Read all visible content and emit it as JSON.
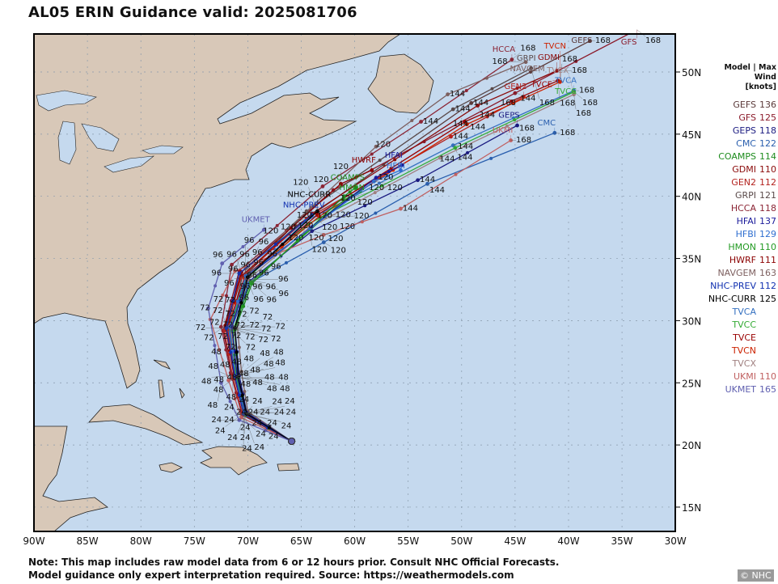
{
  "title": "AL05 ERIN Guidance valid: 2025081706",
  "legend": {
    "header_line1": "Model | Max Wind",
    "header_line2": "[knots]",
    "items": [
      {
        "name": "GEFS",
        "wind": "136",
        "color": "#5b3a3a"
      },
      {
        "name": "GFS",
        "wind": "125",
        "color": "#8b1a2a"
      },
      {
        "name": "GEPS",
        "wind": "118",
        "color": "#1a1a80"
      },
      {
        "name": "CMC",
        "wind": "122",
        "color": "#2a5fae"
      },
      {
        "name": "COAMPS",
        "wind": "114",
        "color": "#1e8c1e"
      },
      {
        "name": "GDMI",
        "wind": "110",
        "color": "#8b0a0a"
      },
      {
        "name": "GEN2",
        "wind": "112",
        "color": "#b3221e"
      },
      {
        "name": "GRPI",
        "wind": "121",
        "color": "#5a4a4a"
      },
      {
        "name": "HCCA",
        "wind": "118",
        "color": "#8b2535"
      },
      {
        "name": "HFAI",
        "wind": "137",
        "color": "#1a1a9a"
      },
      {
        "name": "HFBI",
        "wind": "129",
        "color": "#2f6fd0"
      },
      {
        "name": "HMON",
        "wind": "110",
        "color": "#239a23"
      },
      {
        "name": "HWRF",
        "wind": "111",
        "color": "#8b0000"
      },
      {
        "name": "NAVGEM",
        "wind": "163",
        "color": "#7d5f5f"
      },
      {
        "name": "NHC-PREV",
        "wind": "112",
        "color": "#1030b0"
      },
      {
        "name": "NHC-CURR",
        "wind": "125",
        "color": "#000000"
      },
      {
        "name": "TVCA",
        "wind": "",
        "color": "#3470c0"
      },
      {
        "name": "TVCC",
        "wind": "",
        "color": "#33aa33"
      },
      {
        "name": "TVCE",
        "wind": "",
        "color": "#990000"
      },
      {
        "name": "TVCN",
        "wind": "",
        "color": "#cc2200"
      },
      {
        "name": "TVCX",
        "wind": "",
        "color": "#a08080"
      },
      {
        "name": "UKMI",
        "wind": "110",
        "color": "#c06060"
      },
      {
        "name": "UKMET",
        "wind": "165",
        "color": "#6060b0"
      }
    ]
  },
  "axes": {
    "lon_ticks": [
      "90W",
      "85W",
      "80W",
      "75W",
      "70W",
      "65W",
      "60W",
      "55W",
      "50W",
      "45W",
      "40W",
      "35W",
      "30W"
    ],
    "lat_ticks": [
      "50N",
      "45N",
      "40N",
      "35N",
      "30N",
      "25N",
      "20N",
      "15N"
    ],
    "lon_range": [
      -90,
      -30
    ],
    "lat_range": [
      13.1,
      53.1
    ]
  },
  "colors": {
    "ocean": "#c5d9ee",
    "land": "#d8c8b8",
    "lakes": "#c5d9ee"
  },
  "tracks": [
    {
      "model": "GEFS",
      "color": "#5b3a3a",
      "points": [
        [
          0,
          -65.9,
          20.3
        ],
        [
          24,
          -70.4,
          22.6
        ],
        [
          48,
          -71.3,
          25.7
        ],
        [
          72,
          -71.6,
          29.6
        ],
        [
          96,
          -70.5,
          33.6
        ],
        [
          120,
          -65.5,
          37.6
        ],
        [
          144,
          -49.1,
          47.5
        ],
        [
          168,
          -38.0,
          52.5
        ]
      ]
    },
    {
      "model": "GFS",
      "color": "#8b1a2a",
      "points": [
        [
          0,
          -65.9,
          20.3
        ],
        [
          24,
          -70.5,
          22.4
        ],
        [
          48,
          -71.4,
          25.3
        ],
        [
          72,
          -72.3,
          29.2
        ],
        [
          96,
          -70.8,
          34.0
        ],
        [
          120,
          -62.0,
          40.5
        ],
        [
          144,
          -45.0,
          48.3
        ],
        [
          168,
          -33.6,
          53.4
        ]
      ]
    },
    {
      "model": "HCCA",
      "color": "#8b2535",
      "points": [
        [
          0,
          -65.9,
          20.3
        ],
        [
          24,
          -70.6,
          22.6
        ],
        [
          48,
          -71.6,
          25.8
        ],
        [
          72,
          -72.5,
          29.5
        ],
        [
          96,
          -71.5,
          34.5
        ],
        [
          120,
          -63.0,
          40.8
        ],
        [
          144,
          -53.8,
          46.0
        ],
        [
          168,
          -45.3,
          51.0
        ]
      ]
    },
    {
      "model": "GRPI",
      "color": "#5a4a4a",
      "points": [
        [
          0,
          -65.9,
          20.3
        ],
        [
          24,
          -70.2,
          22.6
        ],
        [
          48,
          -71.0,
          25.6
        ],
        [
          72,
          -71.5,
          29.6
        ],
        [
          96,
          -70.0,
          33.8
        ],
        [
          120,
          -64.5,
          38.8
        ],
        [
          144,
          -50.8,
          47.0
        ],
        [
          168,
          -43.5,
          50.3
        ]
      ]
    },
    {
      "model": "NAVGEM",
      "color": "#7d5f5f",
      "points": [
        [
          0,
          -65.9,
          20.3
        ],
        [
          24,
          -70.0,
          22.7
        ],
        [
          48,
          -70.6,
          25.9
        ],
        [
          72,
          -71.0,
          29.8
        ],
        [
          96,
          -70.2,
          34.2
        ],
        [
          120,
          -58.0,
          44.0
        ],
        [
          144,
          -51.3,
          48.2
        ],
        [
          168,
          -44.0,
          50.8
        ]
      ]
    },
    {
      "model": "GDMI",
      "color": "#8b0a0a",
      "points": [
        [
          0,
          -65.9,
          20.3
        ],
        [
          24,
          -70.4,
          22.5
        ],
        [
          48,
          -71.2,
          25.5
        ],
        [
          72,
          -72.0,
          29.3
        ],
        [
          96,
          -70.6,
          33.6
        ],
        [
          120,
          -64.0,
          38.6
        ],
        [
          144,
          -48.5,
          47.3
        ],
        [
          168,
          -41.1,
          50.1
        ]
      ]
    },
    {
      "model": "GEN2",
      "color": "#b3221e",
      "points": [
        [
          0,
          -65.9,
          20.3
        ],
        [
          24,
          -70.5,
          22.5
        ],
        [
          48,
          -71.4,
          25.4
        ],
        [
          72,
          -72.2,
          29.2
        ],
        [
          96,
          -70.7,
          33.4
        ],
        [
          120,
          -64.5,
          38.2
        ],
        [
          144,
          -51.0,
          44.8
        ],
        [
          168,
          -44.2,
          48.0
        ]
      ]
    },
    {
      "model": "GEPS",
      "color": "#1a1a80",
      "points": [
        [
          0,
          -65.9,
          20.3
        ],
        [
          24,
          -70.1,
          22.6
        ],
        [
          48,
          -70.8,
          25.6
        ],
        [
          72,
          -71.2,
          29.4
        ],
        [
          96,
          -69.8,
          33.2
        ],
        [
          120,
          -64.0,
          37.2
        ],
        [
          144,
          -54.1,
          41.3
        ],
        [
          168,
          -44.8,
          45.7
        ]
      ]
    },
    {
      "model": "CMC",
      "color": "#2a5fae",
      "points": [
        [
          0,
          -65.9,
          20.3
        ],
        [
          24,
          -70.2,
          22.5
        ],
        [
          48,
          -71.0,
          25.4
        ],
        [
          72,
          -71.6,
          29.2
        ],
        [
          96,
          -69.9,
          33.0
        ],
        [
          120,
          -62.9,
          36.3
        ],
        [
          144,
          -53.2,
          41.0
        ],
        [
          168,
          -41.3,
          45.1
        ]
      ]
    },
    {
      "model": "UKMI",
      "color": "#c06060",
      "points": [
        [
          0,
          -65.9,
          20.3
        ],
        [
          24,
          -70.6,
          22.2
        ],
        [
          48,
          -71.8,
          25.2
        ],
        [
          72,
          -73.5,
          30.1
        ],
        [
          96,
          -71.2,
          34.0
        ],
        [
          120,
          -62.9,
          36.9
        ],
        [
          144,
          -55.7,
          39.0
        ],
        [
          168,
          -45.4,
          44.5
        ]
      ]
    },
    {
      "model": "TVCA",
      "color": "#3470c0",
      "points": [
        [
          0,
          -65.9,
          20.3
        ],
        [
          24,
          -70.3,
          22.5
        ],
        [
          48,
          -71.1,
          25.5
        ],
        [
          72,
          -71.8,
          29.4
        ],
        [
          96,
          -70.2,
          33.4
        ],
        [
          120,
          -64.6,
          38.0
        ],
        [
          144,
          -50.8,
          44.1
        ],
        [
          168,
          -39.5,
          48.5
        ]
      ]
    },
    {
      "model": "TVCC",
      "color": "#33aa33",
      "points": [
        [
          0,
          -65.9,
          20.3
        ],
        [
          24,
          -70.3,
          22.5
        ],
        [
          48,
          -71.1,
          25.5
        ],
        [
          72,
          -71.7,
          29.4
        ],
        [
          96,
          -70.1,
          33.4
        ],
        [
          120,
          -64.3,
          37.8
        ],
        [
          144,
          -50.6,
          43.9
        ],
        [
          168,
          -39.5,
          48.4
        ]
      ]
    },
    {
      "model": "TVCE",
      "color": "#990000",
      "points": [
        [
          0,
          -65.9,
          20.3
        ],
        [
          24,
          -70.3,
          22.5
        ],
        [
          48,
          -71.2,
          25.5
        ],
        [
          72,
          -71.9,
          29.4
        ],
        [
          96,
          -70.3,
          33.5
        ],
        [
          120,
          -63.5,
          38.5
        ],
        [
          144,
          -49.7,
          46.0
        ],
        [
          168,
          -41.0,
          49.3
        ]
      ]
    },
    {
      "model": "TVCN",
      "color": "#cc2200",
      "points": [
        [
          0,
          -65.9,
          20.3
        ],
        [
          24,
          -70.3,
          22.5
        ],
        [
          48,
          -71.2,
          25.4
        ],
        [
          72,
          -71.9,
          29.3
        ],
        [
          96,
          -70.3,
          33.4
        ],
        [
          120,
          -63.3,
          38.4
        ],
        [
          144,
          -49.5,
          45.8
        ],
        [
          168,
          -40.8,
          49.2
        ]
      ]
    },
    {
      "model": "TVCX",
      "color": "#a08080",
      "points": [
        [
          0,
          -65.9,
          20.3
        ],
        [
          24,
          -70.2,
          22.5
        ],
        [
          48,
          -71.0,
          25.5
        ],
        [
          72,
          -71.6,
          29.4
        ],
        [
          96,
          -70.0,
          33.3
        ],
        [
          120,
          -64.2,
          37.5
        ],
        [
          144,
          -52.0,
          43.1
        ],
        [
          168,
          -39.5,
          48.2
        ]
      ]
    },
    {
      "model": "COAMPS",
      "color": "#1e8c1e",
      "points": [
        [
          0,
          -65.9,
          20.3
        ],
        [
          24,
          -70.1,
          22.5
        ],
        [
          48,
          -70.9,
          25.4
        ],
        [
          72,
          -71.2,
          29.3
        ],
        [
          96,
          -69.6,
          33.0
        ],
        [
          120,
          -61.0,
          40.0
        ],
        [
          126,
          -59.9,
          40.7
        ]
      ]
    },
    {
      "model": "HMON",
      "color": "#239a23",
      "points": [
        [
          0,
          -65.9,
          20.3
        ],
        [
          24,
          -70.2,
          22.4
        ],
        [
          48,
          -71.0,
          25.3
        ],
        [
          72,
          -71.4,
          29.2
        ],
        [
          96,
          -69.7,
          33.1
        ],
        [
          120,
          -61.0,
          39.7
        ],
        [
          126,
          -59.5,
          40.4
        ]
      ]
    },
    {
      "model": "HWRF",
      "color": "#8b0000",
      "points": [
        [
          0,
          -65.9,
          20.3
        ],
        [
          24,
          -70.4,
          22.6
        ],
        [
          48,
          -71.3,
          25.6
        ],
        [
          72,
          -72.1,
          29.6
        ],
        [
          96,
          -70.6,
          33.9
        ],
        [
          120,
          -61.3,
          41.0
        ],
        [
          126,
          -58.4,
          42.1
        ]
      ]
    },
    {
      "model": "HFAI",
      "color": "#1a1a9a",
      "points": [
        [
          0,
          -65.9,
          20.3
        ],
        [
          24,
          -70.2,
          22.6
        ],
        [
          48,
          -71.0,
          25.6
        ],
        [
          72,
          -71.5,
          29.5
        ],
        [
          96,
          -70.0,
          33.6
        ],
        [
          120,
          -58.0,
          41.5
        ],
        [
          126,
          -55.6,
          42.5
        ]
      ]
    },
    {
      "model": "HFBI",
      "color": "#2f6fd0",
      "points": [
        [
          0,
          -65.9,
          20.3
        ],
        [
          24,
          -70.3,
          22.6
        ],
        [
          48,
          -71.2,
          25.6
        ],
        [
          72,
          -71.7,
          29.5
        ],
        [
          96,
          -70.2,
          33.6
        ],
        [
          120,
          -58.2,
          41.2
        ],
        [
          126,
          -55.7,
          42.1
        ]
      ]
    },
    {
      "model": "NHC-PREV",
      "color": "#1030b0",
      "points": [
        [
          0,
          -65.9,
          20.3
        ],
        [
          24,
          -70.4,
          22.5
        ],
        [
          48,
          -71.2,
          25.5
        ],
        [
          72,
          -72.0,
          29.4
        ],
        [
          96,
          -70.8,
          33.8
        ],
        [
          120,
          -64.0,
          38.5
        ]
      ]
    },
    {
      "model": "NHC-CURR",
      "color": "#000000",
      "points": [
        [
          0,
          -65.9,
          20.3
        ],
        [
          24,
          -70.1,
          22.5
        ],
        [
          48,
          -70.9,
          25.5
        ],
        [
          72,
          -71.2,
          29.4
        ],
        [
          96,
          -70.0,
          33.5
        ],
        [
          120,
          -63.5,
          38.8
        ]
      ]
    },
    {
      "model": "UKMET",
      "color": "#6060b0",
      "points": [
        [
          0,
          -65.9,
          20.3
        ],
        [
          24,
          -70.8,
          22.0
        ],
        [
          48,
          -72.5,
          25.0
        ],
        [
          72,
          -73.7,
          31.0
        ],
        [
          96,
          -72.4,
          34.6
        ],
        [
          120,
          -68.5,
          37.3
        ]
      ]
    }
  ],
  "footer": {
    "line1": "Note: This map includes raw model data from 6 or 12 hours prior. Consult NHC Official Forecasts.",
    "line2": "Model guidance only expert interpretation required. Source: https://weathermodels.com"
  },
  "credit": "© NHC"
}
